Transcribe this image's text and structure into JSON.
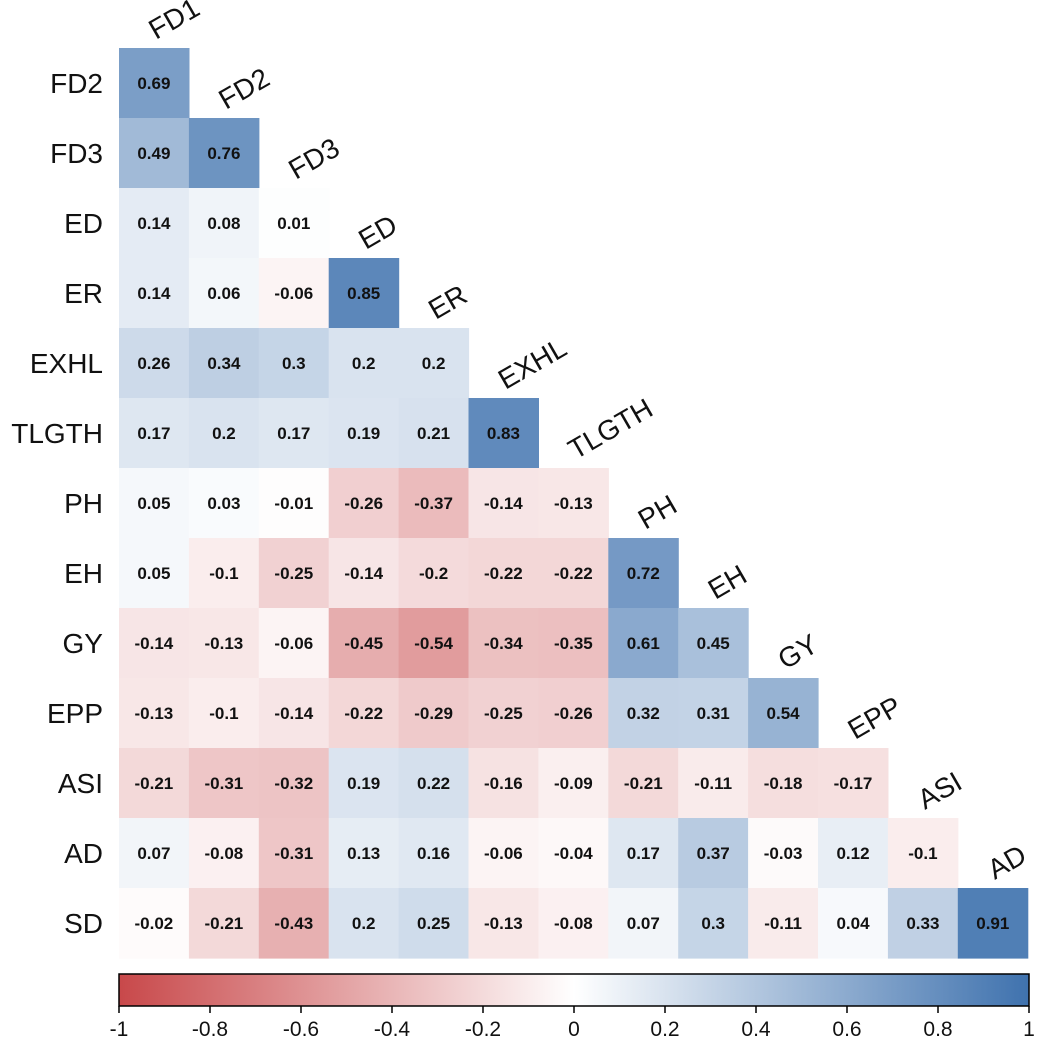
{
  "chart_data": {
    "type": "heatmap",
    "title": "",
    "row_labels": [
      "FD2",
      "FD3",
      "ED",
      "ER",
      "EXHL",
      "TLGTH",
      "PH",
      "EH",
      "GY",
      "EPP",
      "ASI",
      "AD",
      "SD"
    ],
    "col_labels": [
      "FD1",
      "FD2",
      "FD3",
      "ED",
      "ER",
      "EXHL",
      "TLGTH",
      "PH",
      "EH",
      "GY",
      "EPP",
      "ASI",
      "AD"
    ],
    "cells": [
      [
        "0.69"
      ],
      [
        "0.49",
        "0.76"
      ],
      [
        "0.14",
        "0.08",
        "0.01"
      ],
      [
        "0.14",
        "0.06",
        "-0.06",
        "0.85"
      ],
      [
        "0.26",
        "0.34",
        "0.3",
        "0.2",
        "0.2"
      ],
      [
        "0.17",
        "0.2",
        "0.17",
        "0.19",
        "0.21",
        "0.83"
      ],
      [
        "0.05",
        "0.03",
        "-0.01",
        "-0.26",
        "-0.37",
        "-0.14",
        "-0.13"
      ],
      [
        "0.05",
        "-0.1",
        "-0.25",
        "-0.14",
        "-0.2",
        "-0.22",
        "-0.22",
        "0.72"
      ],
      [
        "-0.14",
        "-0.13",
        "-0.06",
        "-0.45",
        "-0.54",
        "-0.34",
        "-0.35",
        "0.61",
        "0.45"
      ],
      [
        "-0.13",
        "-0.1",
        "-0.14",
        "-0.22",
        "-0.29",
        "-0.25",
        "-0.26",
        "0.32",
        "0.31",
        "0.54"
      ],
      [
        "-0.21",
        "-0.31",
        "-0.32",
        "0.19",
        "0.22",
        "-0.16",
        "-0.09",
        "-0.21",
        "-0.11",
        "-0.18",
        "-0.17"
      ],
      [
        "0.07",
        "-0.08",
        "-0.31",
        "0.13",
        "0.16",
        "-0.06",
        "-0.04",
        "0.17",
        "0.37",
        "-0.03",
        "0.12",
        "-0.1"
      ],
      [
        "-0.02",
        "-0.21",
        "-0.43",
        "0.2",
        "0.25",
        "-0.13",
        "-0.08",
        "0.07",
        "0.3",
        "-0.11",
        "0.04",
        "0.33",
        "0.91"
      ]
    ],
    "color_scale": {
      "min": -1,
      "max": 1,
      "ticks": [
        "-1",
        "-0.8",
        "-0.6",
        "-0.4",
        "-0.2",
        "0",
        "0.2",
        "0.4",
        "0.6",
        "0.8",
        "1"
      ],
      "colors": {
        "negative": "#c8484a",
        "neutral": "#ffffff",
        "positive": "#3f72ae"
      }
    },
    "legend_position": "bottom"
  }
}
